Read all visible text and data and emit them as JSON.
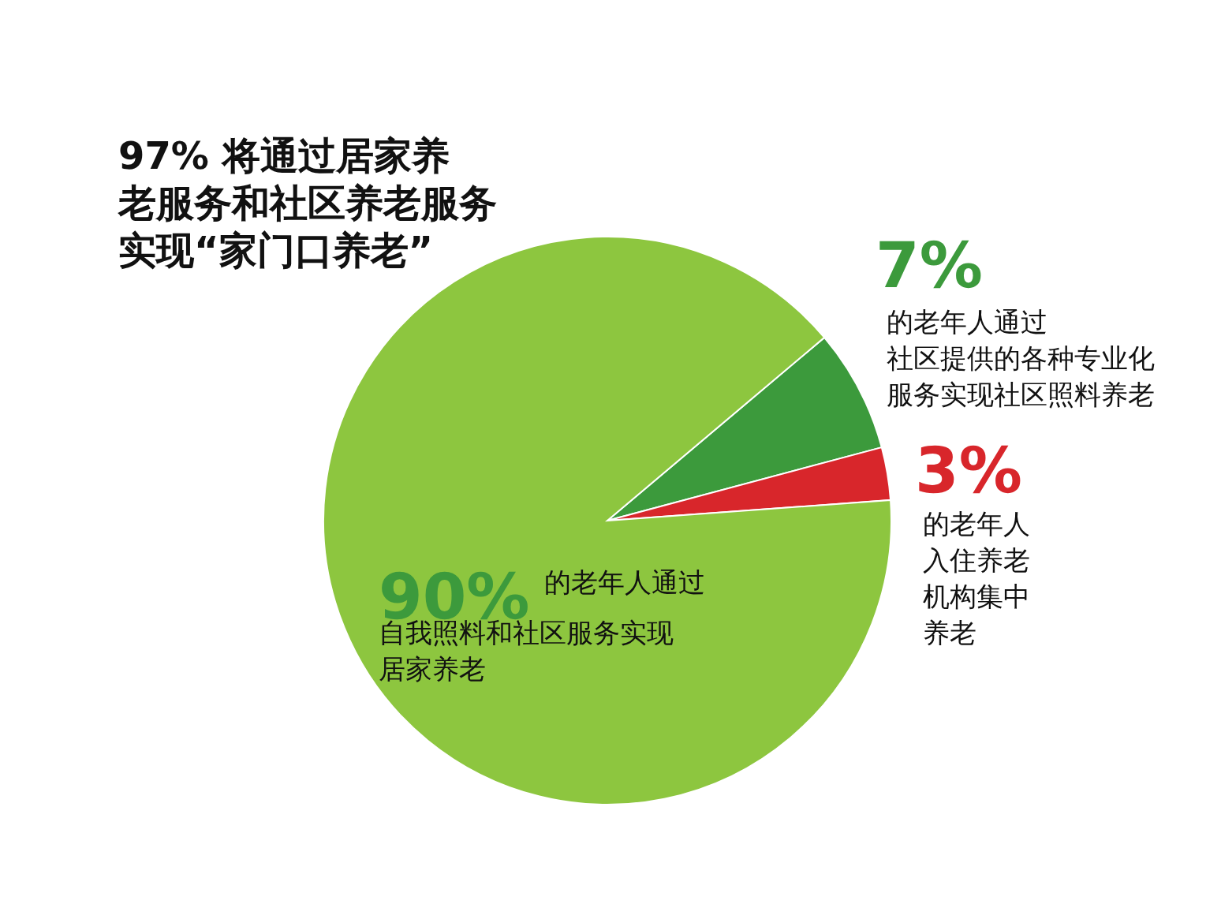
{
  "chart_data": {
    "type": "pie",
    "title": "97% 将通过居家养老服务和社区养老服务实现“家门口养老”",
    "categories": [
      "的老年人通过社区提供的各种专业化服务实现社区照料养老",
      "的老年人入住养老机构集中养老",
      "的老年人通过自我照料和社区服务实现居家养老"
    ],
    "values": [
      7,
      3,
      90
    ],
    "value_labels": [
      "7%",
      "3%",
      "90%"
    ],
    "colors": [
      "#3c9a3c",
      "#d8262b",
      "#8dc63f"
    ]
  }
}
